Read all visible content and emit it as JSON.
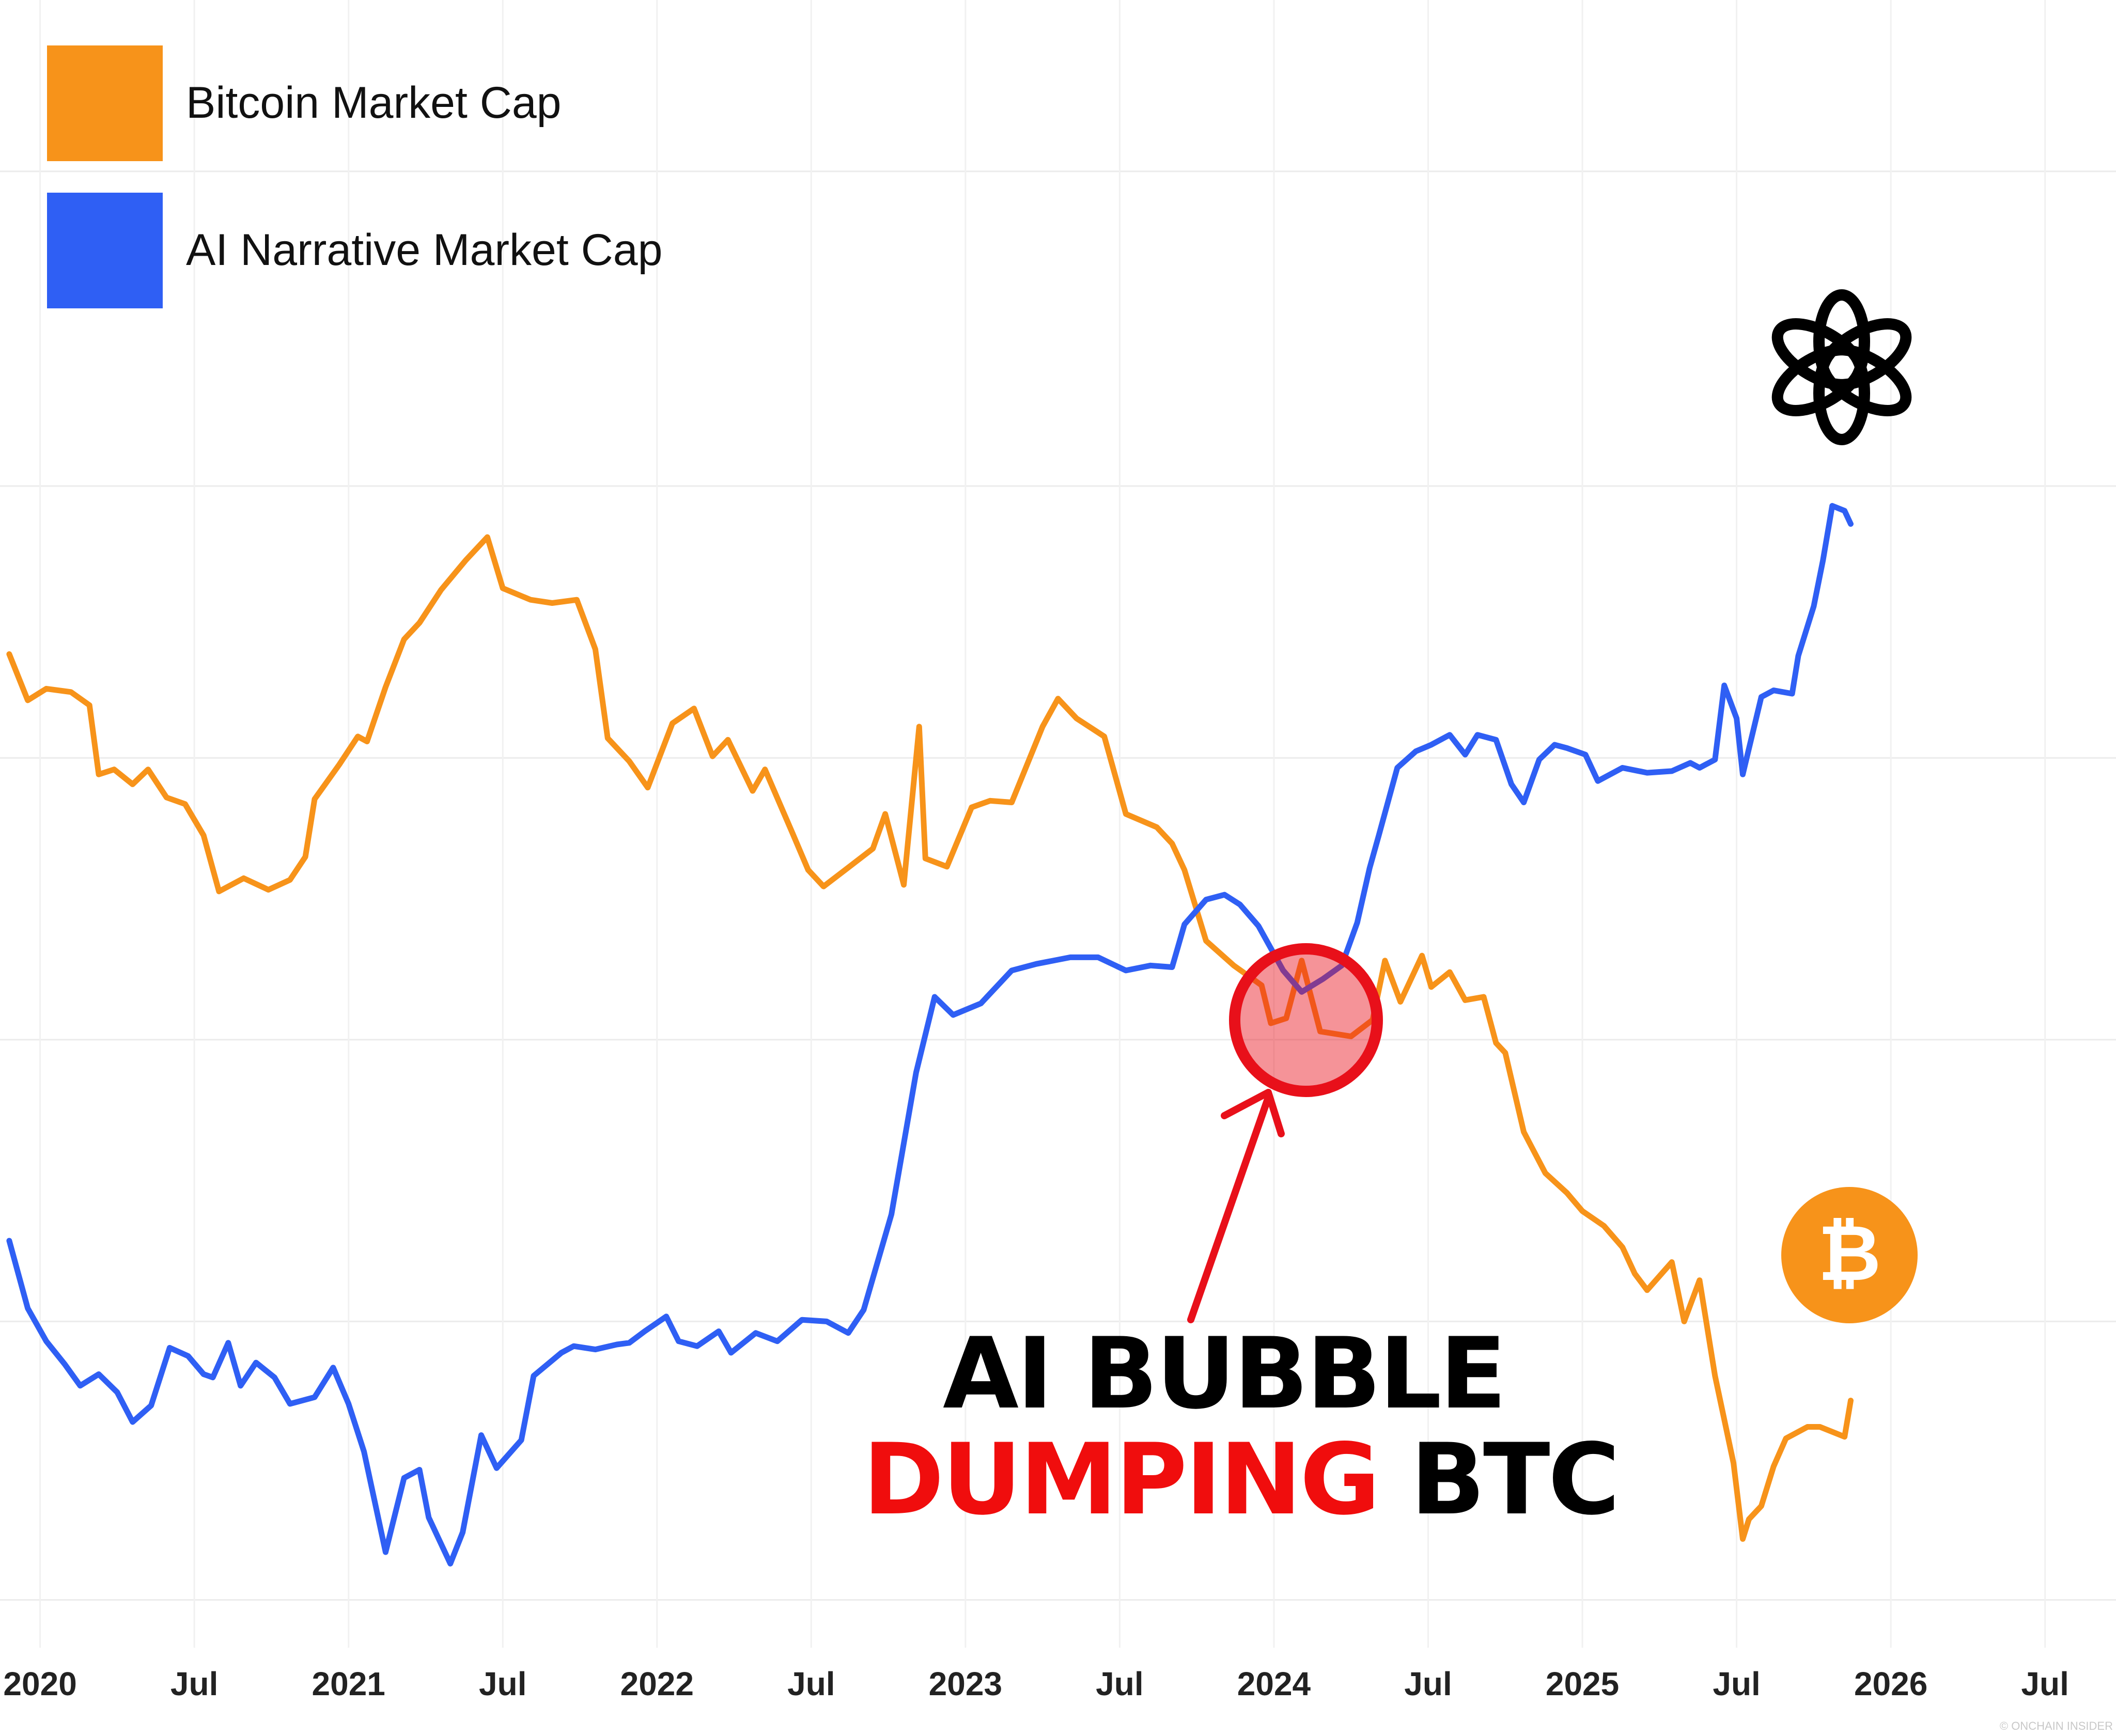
{
  "chart_data": {
    "type": "line",
    "title": "",
    "xlabel": "",
    "ylabel": "",
    "x_ticks": [
      "2020",
      "Jul",
      "2021",
      "Jul",
      "2022",
      "Jul",
      "2023",
      "Jul",
      "2024",
      "Jul",
      "2025",
      "Jul",
      "2026",
      "Jul"
    ],
    "x_tick_years": [
      2020.0,
      2020.5,
      2021.0,
      2021.5,
      2022.0,
      2022.5,
      2023.0,
      2023.5,
      2024.0,
      2024.5,
      2025.0,
      2025.5,
      2026.0,
      2026.5
    ],
    "xlim": [
      2019.87,
      2026.73
    ],
    "ylim": [
      0,
      100
    ],
    "y_ticks_shown": false,
    "grid": true,
    "legend_position": "top-left",
    "note": "Relative scale (y axis unlabelled); 0 = bottom, 100 = top of plot.",
    "series": [
      {
        "name": "Bitcoin Market Cap",
        "color": "#f7931a",
        "points": [
          [
            2019.9,
            60.3
          ],
          [
            2019.96,
            57.5
          ],
          [
            2020.02,
            58.2
          ],
          [
            2020.1,
            58.0
          ],
          [
            2020.16,
            57.2
          ],
          [
            2020.19,
            53.0
          ],
          [
            2020.24,
            53.3
          ],
          [
            2020.3,
            52.4
          ],
          [
            2020.35,
            53.3
          ],
          [
            2020.41,
            51.6
          ],
          [
            2020.47,
            51.2
          ],
          [
            2020.53,
            49.3
          ],
          [
            2020.58,
            45.9
          ],
          [
            2020.66,
            46.7
          ],
          [
            2020.74,
            46.0
          ],
          [
            2020.81,
            46.6
          ],
          [
            2020.86,
            48.0
          ],
          [
            2020.89,
            51.5
          ],
          [
            2020.97,
            53.6
          ],
          [
            2021.03,
            55.3
          ],
          [
            2021.06,
            55.0
          ],
          [
            2021.12,
            58.3
          ],
          [
            2021.18,
            61.2
          ],
          [
            2021.23,
            62.2
          ],
          [
            2021.3,
            64.2
          ],
          [
            2021.38,
            66.0
          ],
          [
            2021.45,
            67.4
          ],
          [
            2021.5,
            64.3
          ],
          [
            2021.59,
            63.6
          ],
          [
            2021.66,
            63.4
          ],
          [
            2021.74,
            63.6
          ],
          [
            2021.8,
            60.6
          ],
          [
            2021.84,
            55.2
          ],
          [
            2021.91,
            53.8
          ],
          [
            2021.97,
            52.2
          ],
          [
            2022.05,
            56.1
          ],
          [
            2022.12,
            57.0
          ],
          [
            2022.18,
            54.1
          ],
          [
            2022.23,
            55.1
          ],
          [
            2022.31,
            52.0
          ],
          [
            2022.35,
            53.3
          ],
          [
            2022.44,
            49.4
          ],
          [
            2022.49,
            47.2
          ],
          [
            2022.54,
            46.2
          ],
          [
            2022.61,
            47.2
          ],
          [
            2022.7,
            48.5
          ],
          [
            2022.74,
            50.6
          ],
          [
            2022.8,
            46.3
          ],
          [
            2022.85,
            55.9
          ],
          [
            2022.87,
            47.9
          ],
          [
            2022.94,
            47.4
          ],
          [
            2023.02,
            51.0
          ],
          [
            2023.08,
            51.4
          ],
          [
            2023.15,
            51.3
          ],
          [
            2023.25,
            55.9
          ],
          [
            2023.3,
            57.6
          ],
          [
            2023.36,
            56.4
          ],
          [
            2023.45,
            55.3
          ],
          [
            2023.52,
            50.6
          ],
          [
            2023.62,
            49.8
          ],
          [
            2023.67,
            48.8
          ],
          [
            2023.71,
            47.2
          ],
          [
            2023.78,
            42.9
          ],
          [
            2023.87,
            41.4
          ],
          [
            2023.96,
            40.2
          ],
          [
            2023.99,
            37.9
          ],
          [
            2024.04,
            38.2
          ],
          [
            2024.09,
            41.7
          ],
          [
            2024.15,
            37.4
          ],
          [
            2024.25,
            37.1
          ],
          [
            2024.32,
            38.1
          ],
          [
            2024.36,
            41.7
          ],
          [
            2024.41,
            39.2
          ],
          [
            2024.48,
            42.0
          ],
          [
            2024.51,
            40.1
          ],
          [
            2024.57,
            41.0
          ],
          [
            2024.62,
            39.3
          ],
          [
            2024.68,
            39.5
          ],
          [
            2024.72,
            36.7
          ],
          [
            2024.75,
            36.1
          ],
          [
            2024.81,
            31.3
          ],
          [
            2024.88,
            28.8
          ],
          [
            2024.95,
            27.6
          ],
          [
            2025.0,
            26.5
          ],
          [
            2025.07,
            25.6
          ],
          [
            2025.13,
            24.3
          ],
          [
            2025.17,
            22.7
          ],
          [
            2025.21,
            21.7
          ],
          [
            2025.29,
            23.4
          ],
          [
            2025.33,
            19.8
          ],
          [
            2025.38,
            22.3
          ],
          [
            2025.43,
            16.5
          ],
          [
            2025.49,
            11.2
          ],
          [
            2025.52,
            6.6
          ],
          [
            2025.54,
            7.8
          ],
          [
            2025.58,
            8.6
          ],
          [
            2025.62,
            11.0
          ],
          [
            2025.66,
            12.7
          ],
          [
            2025.73,
            13.4
          ],
          [
            2025.77,
            13.4
          ],
          [
            2025.85,
            12.8
          ],
          [
            2025.87,
            15.0
          ]
        ]
      },
      {
        "name": "AI Narrative Market Cap",
        "color": "#2f5ff4",
        "points": [
          [
            2019.9,
            24.7
          ],
          [
            2019.96,
            20.6
          ],
          [
            2020.02,
            18.6
          ],
          [
            2020.08,
            17.2
          ],
          [
            2020.13,
            15.9
          ],
          [
            2020.19,
            16.6
          ],
          [
            2020.25,
            15.5
          ],
          [
            2020.3,
            13.7
          ],
          [
            2020.36,
            14.7
          ],
          [
            2020.42,
            18.2
          ],
          [
            2020.48,
            17.7
          ],
          [
            2020.53,
            16.6
          ],
          [
            2020.56,
            16.4
          ],
          [
            2020.61,
            18.5
          ],
          [
            2020.65,
            15.9
          ],
          [
            2020.7,
            17.3
          ],
          [
            2020.76,
            16.4
          ],
          [
            2020.81,
            14.8
          ],
          [
            2020.89,
            15.2
          ],
          [
            2020.95,
            17.0
          ],
          [
            2021.0,
            14.8
          ],
          [
            2021.05,
            11.9
          ],
          [
            2021.12,
            5.8
          ],
          [
            2021.18,
            10.3
          ],
          [
            2021.23,
            10.8
          ],
          [
            2021.26,
            7.9
          ],
          [
            2021.33,
            5.1
          ],
          [
            2021.37,
            7.0
          ],
          [
            2021.43,
            12.9
          ],
          [
            2021.48,
            10.9
          ],
          [
            2021.56,
            12.6
          ],
          [
            2021.6,
            16.5
          ],
          [
            2021.69,
            17.9
          ],
          [
            2021.73,
            18.3
          ],
          [
            2021.8,
            18.1
          ],
          [
            2021.87,
            18.4
          ],
          [
            2021.91,
            18.5
          ],
          [
            2021.96,
            19.2
          ],
          [
            2022.03,
            20.1
          ],
          [
            2022.07,
            18.6
          ],
          [
            2022.13,
            18.3
          ],
          [
            2022.2,
            19.2
          ],
          [
            2022.24,
            17.9
          ],
          [
            2022.32,
            19.1
          ],
          [
            2022.39,
            18.6
          ],
          [
            2022.47,
            19.9
          ],
          [
            2022.55,
            19.8
          ],
          [
            2022.62,
            19.1
          ],
          [
            2022.67,
            20.5
          ],
          [
            2022.76,
            26.3
          ],
          [
            2022.84,
            34.9
          ],
          [
            2022.9,
            39.5
          ],
          [
            2022.96,
            38.4
          ],
          [
            2023.05,
            39.1
          ],
          [
            2023.15,
            41.1
          ],
          [
            2023.23,
            41.5
          ],
          [
            2023.34,
            41.9
          ],
          [
            2023.43,
            41.9
          ],
          [
            2023.52,
            41.1
          ],
          [
            2023.6,
            41.4
          ],
          [
            2023.67,
            41.3
          ],
          [
            2023.71,
            43.9
          ],
          [
            2023.78,
            45.4
          ],
          [
            2023.84,
            45.7
          ],
          [
            2023.89,
            45.1
          ],
          [
            2023.95,
            43.8
          ],
          [
            2024.03,
            41.1
          ],
          [
            2024.09,
            39.8
          ],
          [
            2024.16,
            40.6
          ],
          [
            2024.22,
            41.4
          ],
          [
            2024.27,
            44.0
          ],
          [
            2024.31,
            47.3
          ],
          [
            2024.34,
            49.3
          ],
          [
            2024.4,
            53.4
          ],
          [
            2024.46,
            54.4
          ],
          [
            2024.51,
            54.8
          ],
          [
            2024.57,
            55.4
          ],
          [
            2024.62,
            54.2
          ],
          [
            2024.66,
            55.4
          ],
          [
            2024.72,
            55.1
          ],
          [
            2024.77,
            52.4
          ],
          [
            2024.81,
            51.3
          ],
          [
            2024.86,
            53.9
          ],
          [
            2024.91,
            54.8
          ],
          [
            2024.95,
            54.6
          ],
          [
            2025.01,
            54.2
          ],
          [
            2025.05,
            52.6
          ],
          [
            2025.13,
            53.4
          ],
          [
            2025.21,
            53.1
          ],
          [
            2025.29,
            53.2
          ],
          [
            2025.35,
            53.7
          ],
          [
            2025.38,
            53.4
          ],
          [
            2025.43,
            53.9
          ],
          [
            2025.46,
            58.4
          ],
          [
            2025.5,
            56.4
          ],
          [
            2025.52,
            53.0
          ],
          [
            2025.58,
            57.7
          ],
          [
            2025.62,
            58.1
          ],
          [
            2025.68,
            57.9
          ],
          [
            2025.7,
            60.2
          ],
          [
            2025.75,
            63.2
          ],
          [
            2025.78,
            66.0
          ],
          [
            2025.81,
            69.3
          ],
          [
            2025.85,
            69.0
          ],
          [
            2025.87,
            68.2
          ]
        ]
      }
    ]
  },
  "legend": [
    {
      "label": "Bitcoin Market Cap",
      "color": "#f7931a"
    },
    {
      "label": "AI Narrative Market Cap",
      "color": "#2f5ff4"
    }
  ],
  "annotation": {
    "line1": "AI BUBBLE",
    "line2_red": "DUMPING",
    "line2_black": "BTC",
    "circle_color": "#e8101a",
    "arrow_color": "#e8101a"
  },
  "icons": {
    "openai": "openai-logo-icon",
    "bitcoin": "bitcoin-logo-icon",
    "bitcoin_color": "#f7931a"
  },
  "watermark": "© ONCHAIN INSIDER"
}
